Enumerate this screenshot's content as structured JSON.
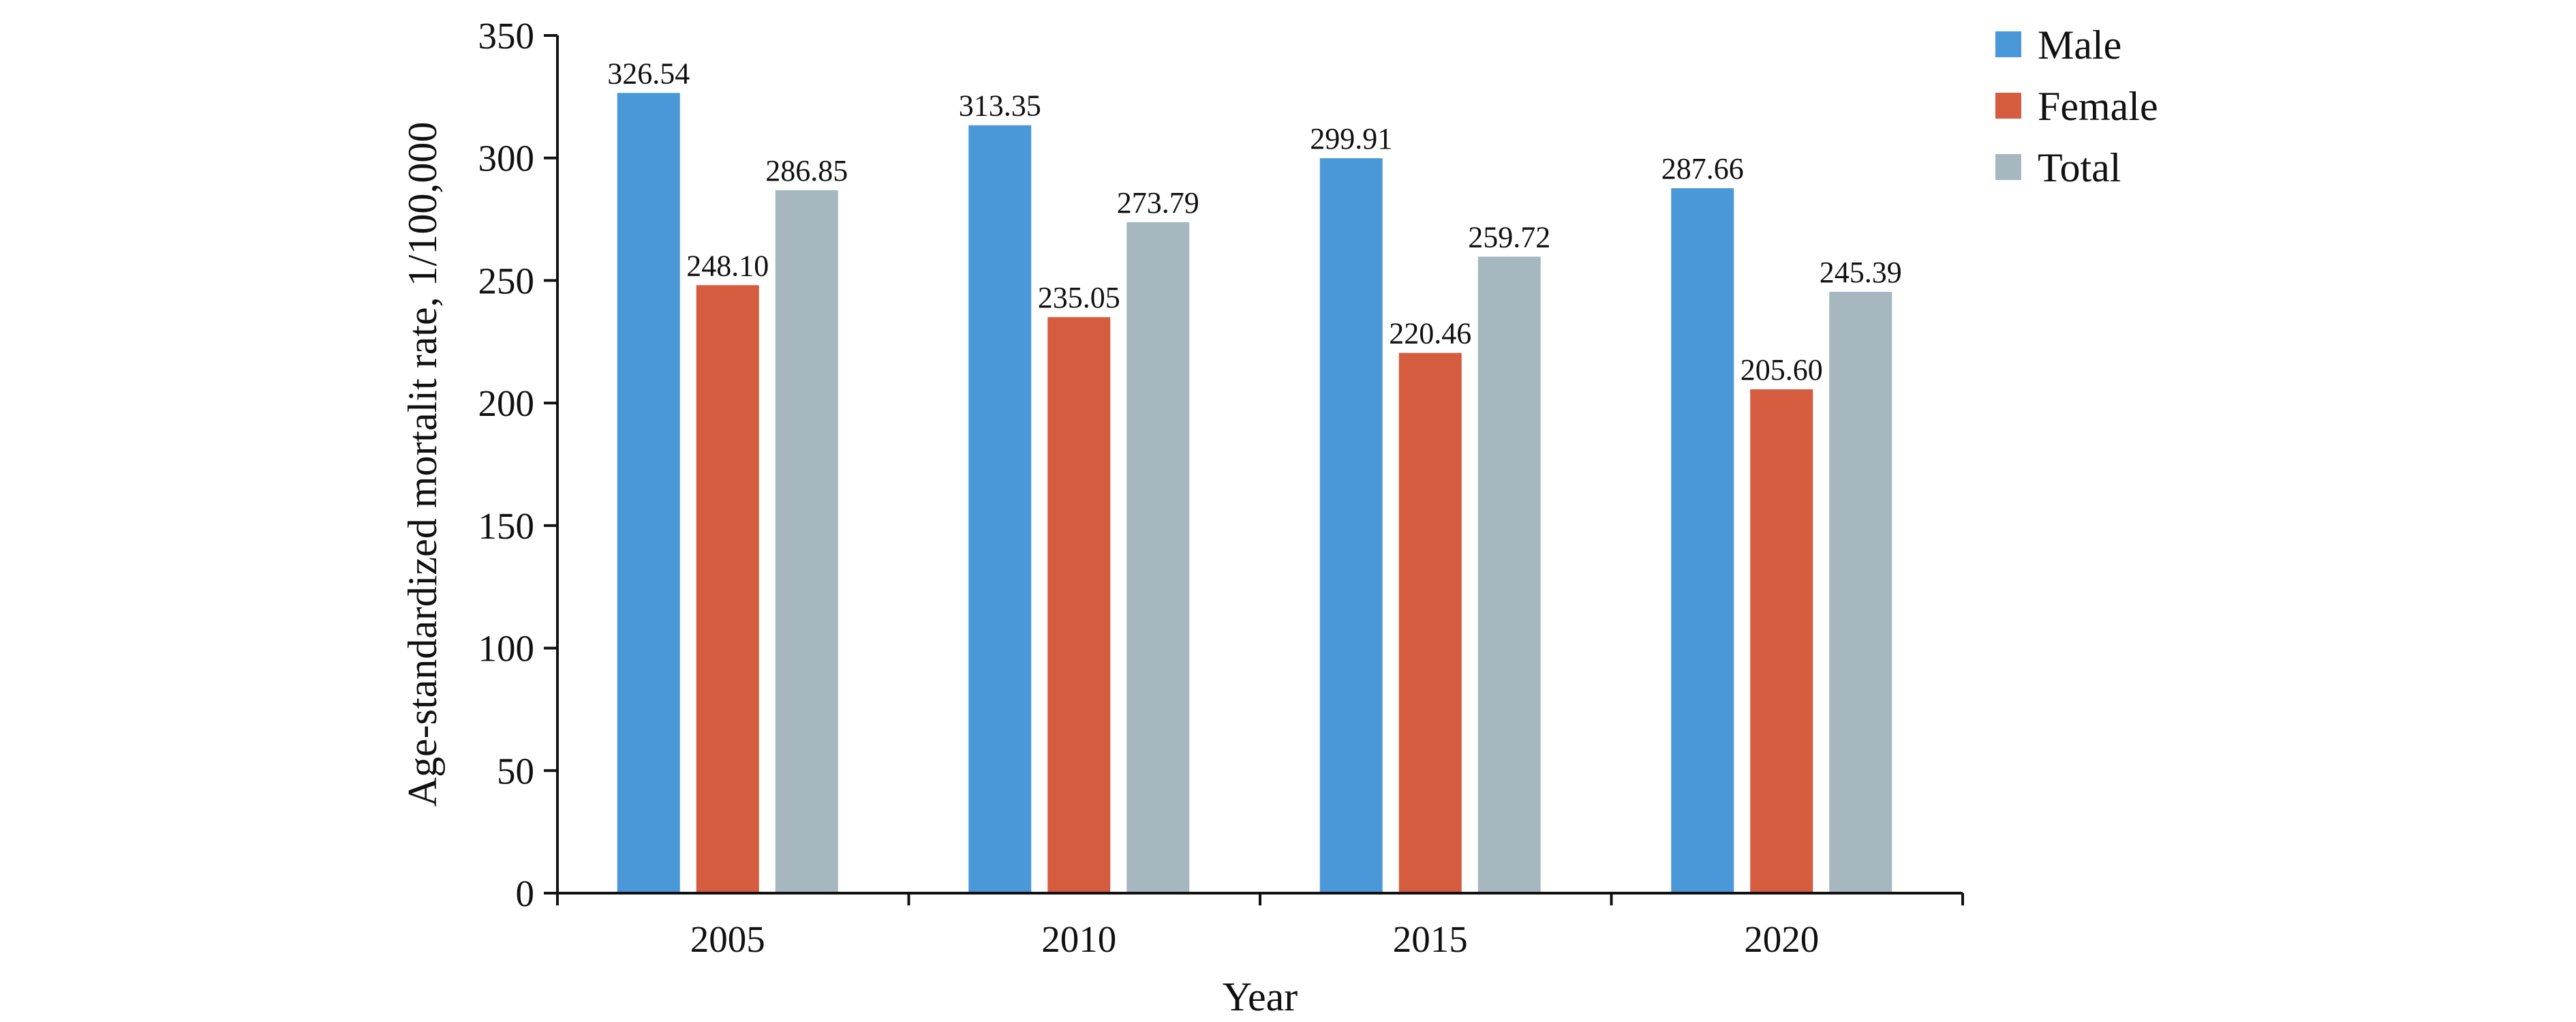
{
  "chart_data": {
    "type": "bar",
    "title": "",
    "xlabel": "Year",
    "ylabel": "Age-standardized mortalit rate, 1/100,000",
    "categories": [
      "2005",
      "2010",
      "2015",
      "2020"
    ],
    "ylim": [
      0,
      350
    ],
    "yticks": [
      "0",
      "50",
      "100",
      "150",
      "200",
      "250",
      "300",
      "350"
    ],
    "grid": false,
    "legend_position": "top-right",
    "series": [
      {
        "name": "Male",
        "color": "#4b98d9",
        "values": [
          326.54,
          313.35,
          299.91,
          287.66
        ],
        "labels": [
          "326.54",
          "313.35",
          "299.91",
          "287.66"
        ]
      },
      {
        "name": "Female",
        "color": "#d55c3e",
        "values": [
          248.1,
          235.05,
          220.46,
          205.6
        ],
        "labels": [
          "248.10",
          "235.05",
          "220.46",
          "205.60"
        ]
      },
      {
        "name": "Total",
        "color": "#a7b7bf",
        "values": [
          286.85,
          273.79,
          259.72,
          245.39
        ],
        "labels": [
          "286.85",
          "273.79",
          "259.72",
          "245.39"
        ]
      }
    ]
  }
}
